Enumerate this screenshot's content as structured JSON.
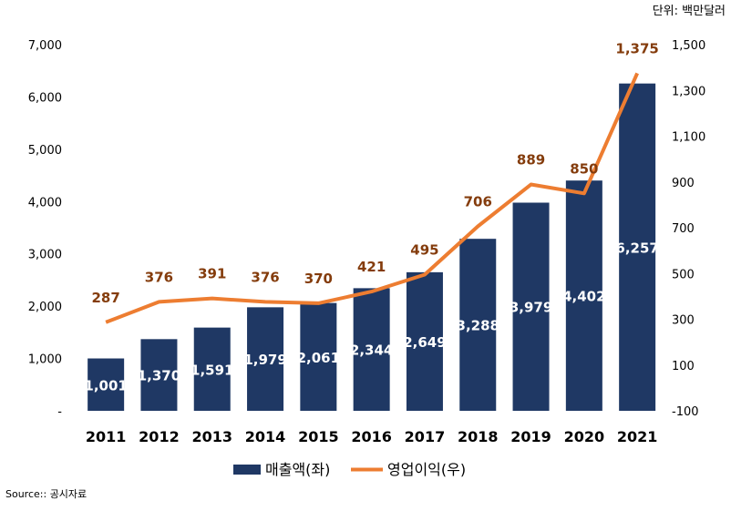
{
  "chart_data": {
    "type": "bar-line",
    "unit_note": "단위: 백만달러",
    "source": "Source:: 공시자료",
    "categories": [
      "2011",
      "2012",
      "2013",
      "2014",
      "2015",
      "2016",
      "2017",
      "2018",
      "2019",
      "2020",
      "2021"
    ],
    "series": [
      {
        "name": "매출액(좌)",
        "type": "bar",
        "axis": "left",
        "values": [
          1001,
          1370,
          1591,
          1979,
          2061,
          2344,
          2649,
          3288,
          3979,
          4402,
          6257
        ],
        "value_labels": [
          "1,001",
          "1,370",
          "1,591",
          "1,979",
          "2,061",
          "2,344",
          "2,649",
          "3,288",
          "3,979",
          "4,402",
          "6,257"
        ],
        "color": "#1f3864"
      },
      {
        "name": "영업이익(우)",
        "type": "line",
        "axis": "right",
        "values": [
          287,
          376,
          391,
          376,
          370,
          421,
          495,
          706,
          889,
          850,
          1375
        ],
        "value_labels": [
          "287",
          "376",
          "391",
          "376",
          "370",
          "421",
          "495",
          "706",
          "889",
          "850",
          "1,375"
        ],
        "color": "#ed7d31",
        "label_color": "#843c0c"
      }
    ],
    "left_axis": {
      "ylim": [
        0,
        7000
      ],
      "ticks": [
        0,
        1000,
        2000,
        3000,
        4000,
        5000,
        6000,
        7000
      ],
      "tick_labels": [
        "-",
        "1,000",
        "2,000",
        "3,000",
        "4,000",
        "5,000",
        "6,000",
        "7,000"
      ]
    },
    "right_axis": {
      "ylim": [
        -100,
        1500
      ],
      "ticks": [
        -100,
        100,
        300,
        500,
        700,
        900,
        1100,
        1300,
        1500
      ],
      "tick_labels": [
        "-100",
        "100",
        "300",
        "500",
        "700",
        "900",
        "1,100",
        "1,300",
        "1,500"
      ]
    },
    "grid": false,
    "legend_position": "bottom"
  }
}
